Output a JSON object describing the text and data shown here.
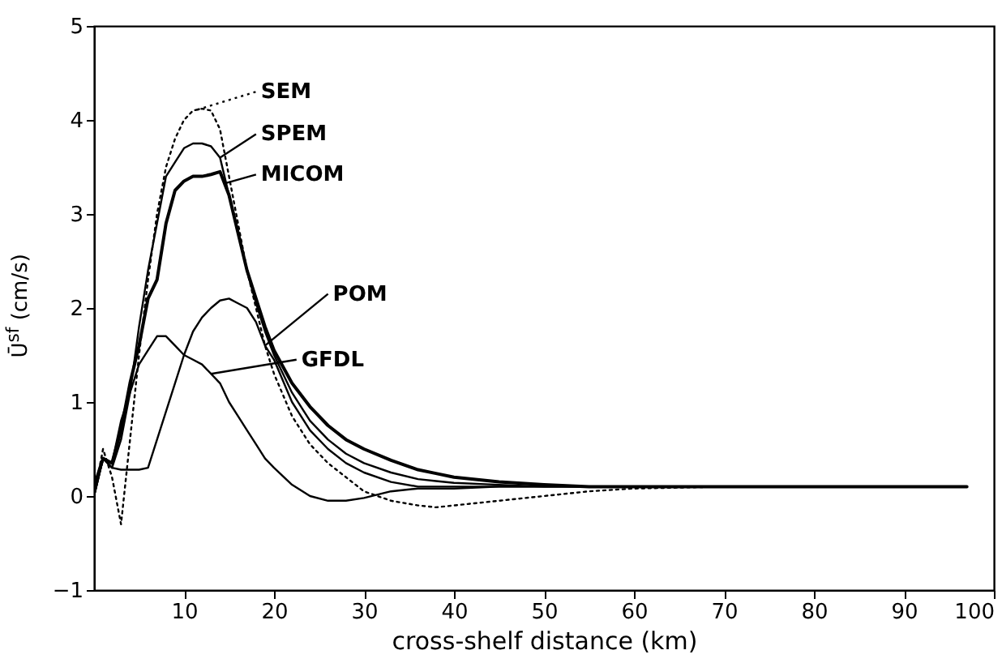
{
  "chart_data": {
    "type": "line",
    "xlabel": "cross-shelf distance (km)",
    "ylabel": "Ū$^{sf}$ (cm/s)",
    "x": [
      0,
      1,
      2,
      3,
      4,
      5,
      6,
      7,
      8,
      9,
      10,
      11,
      12,
      13,
      14,
      15,
      16,
      17,
      18,
      19,
      20,
      22,
      24,
      26,
      28,
      30,
      33,
      36,
      38,
      40,
      45,
      50,
      55,
      60,
      70,
      80,
      90,
      97
    ],
    "series": [
      {
        "name": "SEM",
        "color": "#000000",
        "line_style": "dotted",
        "values": [
          0,
          0.5,
          0.2,
          -0.3,
          0.6,
          1.5,
          2.3,
          3.0,
          3.5,
          3.8,
          4.0,
          4.1,
          4.12,
          4.1,
          3.9,
          3.4,
          2.9,
          2.4,
          2.0,
          1.6,
          1.3,
          0.85,
          0.55,
          0.35,
          0.2,
          0.05,
          -0.05,
          -0.1,
          -0.12,
          -0.1,
          -0.05,
          0.0,
          0.05,
          0.08,
          0.1,
          0.1,
          0.1,
          0.1
        ]
      },
      {
        "name": "SPEM",
        "color": "#000000",
        "values": [
          0,
          0.4,
          0.3,
          0.6,
          1.1,
          1.8,
          2.4,
          2.9,
          3.4,
          3.55,
          3.7,
          3.75,
          3.75,
          3.72,
          3.6,
          3.2,
          2.8,
          2.4,
          2.05,
          1.75,
          1.5,
          1.1,
          0.8,
          0.6,
          0.45,
          0.35,
          0.25,
          0.18,
          0.16,
          0.14,
          0.12,
          0.1,
          0.1,
          0.1,
          0.1,
          0.1,
          0.1,
          0.1
        ]
      },
      {
        "name": "MICOM",
        "color": "#000000",
        "values": [
          0.1,
          0.4,
          0.35,
          0.7,
          1.2,
          1.6,
          2.1,
          2.3,
          2.9,
          3.25,
          3.35,
          3.4,
          3.4,
          3.42,
          3.45,
          3.2,
          2.8,
          2.4,
          2.1,
          1.8,
          1.55,
          1.2,
          0.95,
          0.75,
          0.6,
          0.5,
          0.38,
          0.28,
          0.24,
          0.2,
          0.15,
          0.12,
          0.1,
          0.1,
          0.1,
          0.1,
          0.1,
          0.1
        ]
      },
      {
        "name": "POM",
        "color": "#000000",
        "values": [
          0,
          0.4,
          0.3,
          0.28,
          0.28,
          0.28,
          0.3,
          0.6,
          0.9,
          1.2,
          1.5,
          1.75,
          1.9,
          2.0,
          2.08,
          2.1,
          2.05,
          2.0,
          1.85,
          1.6,
          1.45,
          1.0,
          0.7,
          0.5,
          0.35,
          0.25,
          0.15,
          0.1,
          0.1,
          0.1,
          0.1,
          0.1,
          0.1,
          0.1,
          0.1,
          0.1,
          0.1,
          0.1
        ]
      },
      {
        "name": "GFDL",
        "color": "#000000",
        "values": [
          0,
          0.4,
          0.35,
          0.8,
          1.1,
          1.4,
          1.55,
          1.7,
          1.7,
          1.6,
          1.5,
          1.45,
          1.4,
          1.3,
          1.2,
          1.0,
          0.85,
          0.7,
          0.55,
          0.4,
          0.3,
          0.12,
          0.0,
          -0.05,
          -0.05,
          -0.02,
          0.05,
          0.08,
          0.08,
          0.08,
          0.1,
          0.1,
          0.1,
          0.1,
          0.1,
          0.1,
          0.1,
          0.1
        ]
      }
    ],
    "line_style": "solid",
    "legend": "top",
    "xlim": [
      0,
      100
    ],
    "xticks": [
      10,
      20,
      30,
      40,
      50,
      60,
      70,
      80,
      90,
      100
    ],
    "ylim": [
      -1,
      5
    ],
    "yticks": [
      -1,
      0,
      1,
      2,
      3,
      4,
      5
    ]
  }
}
